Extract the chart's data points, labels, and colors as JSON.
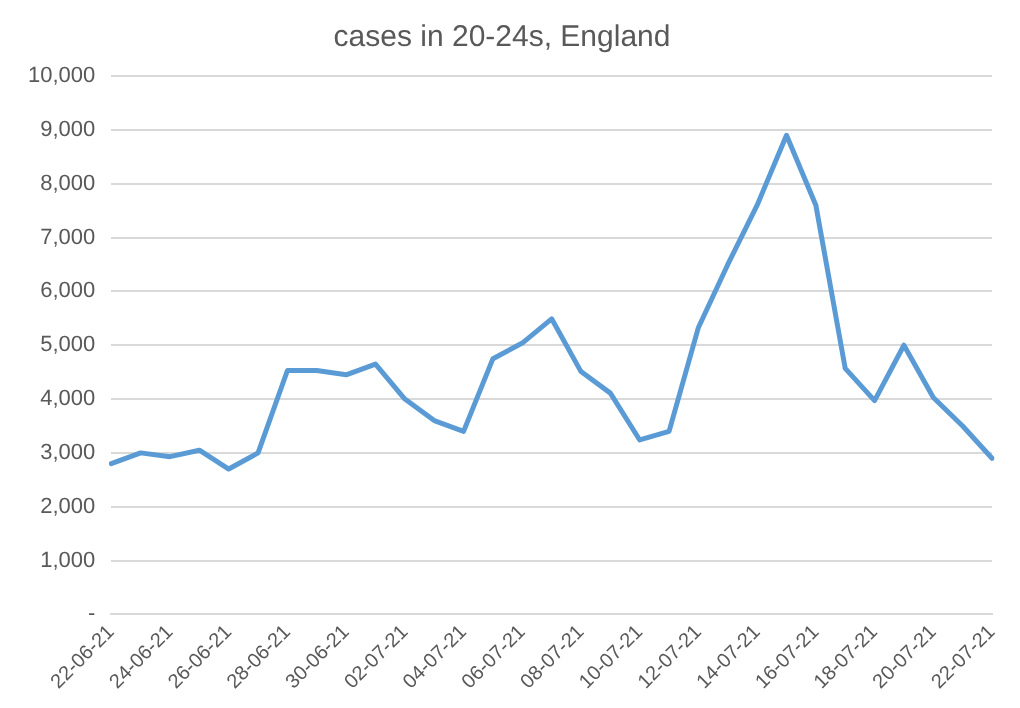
{
  "chart_data": {
    "type": "line",
    "title": "cases in 20-24s, England",
    "categories": [
      "22-06-21",
      null,
      "24-06-21",
      null,
      "26-06-21",
      null,
      "28-06-21",
      null,
      "30-06-21",
      null,
      "02-07-21",
      null,
      "04-07-21",
      null,
      "06-07-21",
      null,
      "08-07-21",
      null,
      "10-07-21",
      null,
      "12-07-21",
      null,
      "14-07-21",
      null,
      "16-07-21",
      null,
      "18-07-21",
      null,
      "20-07-21",
      null,
      "22-07-21"
    ],
    "series": [
      {
        "color": "#5b9bd5",
        "values": [
          2800,
          3000,
          2930,
          3050,
          2700,
          3000,
          4530,
          4530,
          4450,
          4650,
          4000,
          3600,
          3400,
          4750,
          5040,
          5490,
          4510,
          4110,
          3240,
          3400,
          5330,
          6500,
          7600,
          8900,
          7600,
          4570,
          3970,
          5000,
          4030,
          3500,
          2900
        ]
      }
    ],
    "ylim": [
      0,
      10000
    ],
    "yticks": [
      {
        "value": 0,
        "label": "-"
      },
      {
        "value": 1000,
        "label": "1,000"
      },
      {
        "value": 2000,
        "label": "2,000"
      },
      {
        "value": 3000,
        "label": "3,000"
      },
      {
        "value": 4000,
        "label": "4,000"
      },
      {
        "value": 5000,
        "label": "5,000"
      },
      {
        "value": 6000,
        "label": "6,000"
      },
      {
        "value": 7000,
        "label": "7,000"
      },
      {
        "value": 8000,
        "label": "8,000"
      },
      {
        "value": 9000,
        "label": "9,000"
      },
      {
        "value": 10000,
        "label": "10,000"
      }
    ],
    "grid": "y",
    "legend": false,
    "marker": "none",
    "line_style": "solid"
  }
}
